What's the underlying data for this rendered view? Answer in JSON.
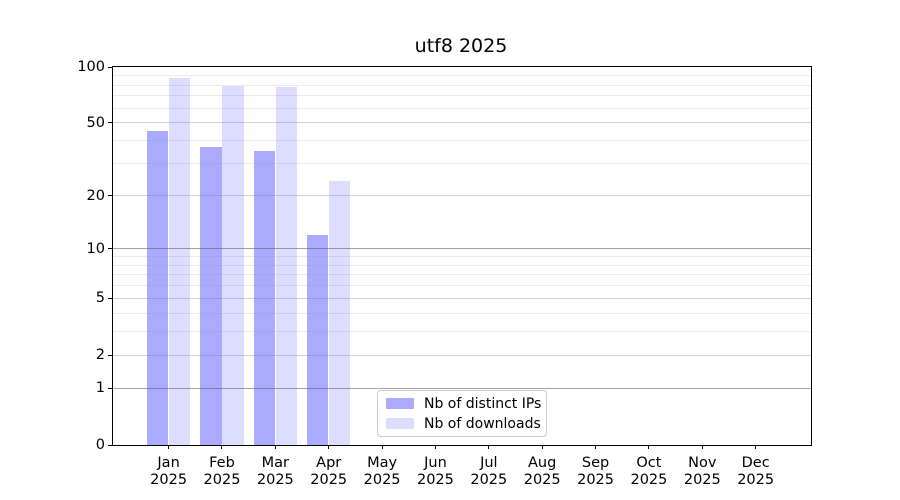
{
  "chart_data": {
    "type": "bar",
    "title": "utf8 2025",
    "categories": [
      "Jan",
      "Feb",
      "Mar",
      "Apr",
      "May",
      "Jun",
      "Jul",
      "Aug",
      "Sep",
      "Oct",
      "Nov",
      "Dec"
    ],
    "x_year_label": "2025",
    "series": [
      {
        "name": "Nb of distinct IPs",
        "color": "#aaaaff",
        "values": [
          45,
          37,
          35,
          12,
          null,
          null,
          null,
          null,
          null,
          null,
          null,
          null
        ]
      },
      {
        "name": "Nb of downloads",
        "color": "#ddddff",
        "values": [
          87,
          79,
          78,
          24,
          null,
          null,
          null,
          null,
          null,
          null,
          null,
          null
        ]
      }
    ],
    "xlabel": "",
    "ylabel": "",
    "y_axis": {
      "scale": "log1p",
      "tick_values": [
        0,
        1,
        2,
        5,
        10,
        20,
        50,
        100
      ],
      "minor_grid_values": [
        3,
        4,
        6,
        7,
        8,
        9,
        30,
        40,
        60,
        70,
        80,
        90
      ],
      "ylim": [
        0,
        100
      ]
    },
    "grid": true,
    "legend_position": "lower center"
  },
  "colors": {
    "background": "#ffffff",
    "axis": "#000000",
    "grid_decade": "rgba(90,90,90,0.55)",
    "grid_labeled": "rgba(130,130,130,0.35)",
    "grid_minor": "rgba(150,150,150,0.20)",
    "legend_border": "#cccccc"
  }
}
